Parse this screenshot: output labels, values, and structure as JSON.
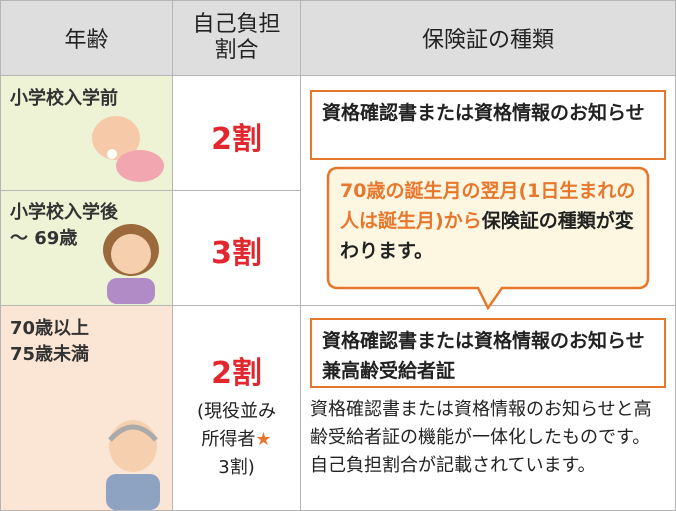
{
  "table": {
    "headers": [
      "年齢",
      "自己負担\n割合",
      "保険証の種類"
    ],
    "rows": [
      {
        "age": "小学校入学前",
        "ratio": "2割",
        "type": "資格確認書または資格情報のお知らせ"
      },
      {
        "age": "小学校入学後\n～ 69歳",
        "ratio": "3割"
      },
      {
        "age": "70歳以上\n75歳未満",
        "ratio": "2割",
        "note_open": "(現役並み\n所得者",
        "star": "★",
        "note_close": "3割)",
        "type": "資格確認書または資格情報のお知らせ兼高齢受給者証",
        "description": "資格確認書または資格情報のお知らせと高齢受給者証の機能が一体化したものです。自己負担割合が記載されています。"
      }
    ]
  },
  "callout": {
    "highlight": "70歳の誕生月の翌月(1日生まれの人は誕生月)から",
    "text": "保険証の種類が変わります。"
  }
}
